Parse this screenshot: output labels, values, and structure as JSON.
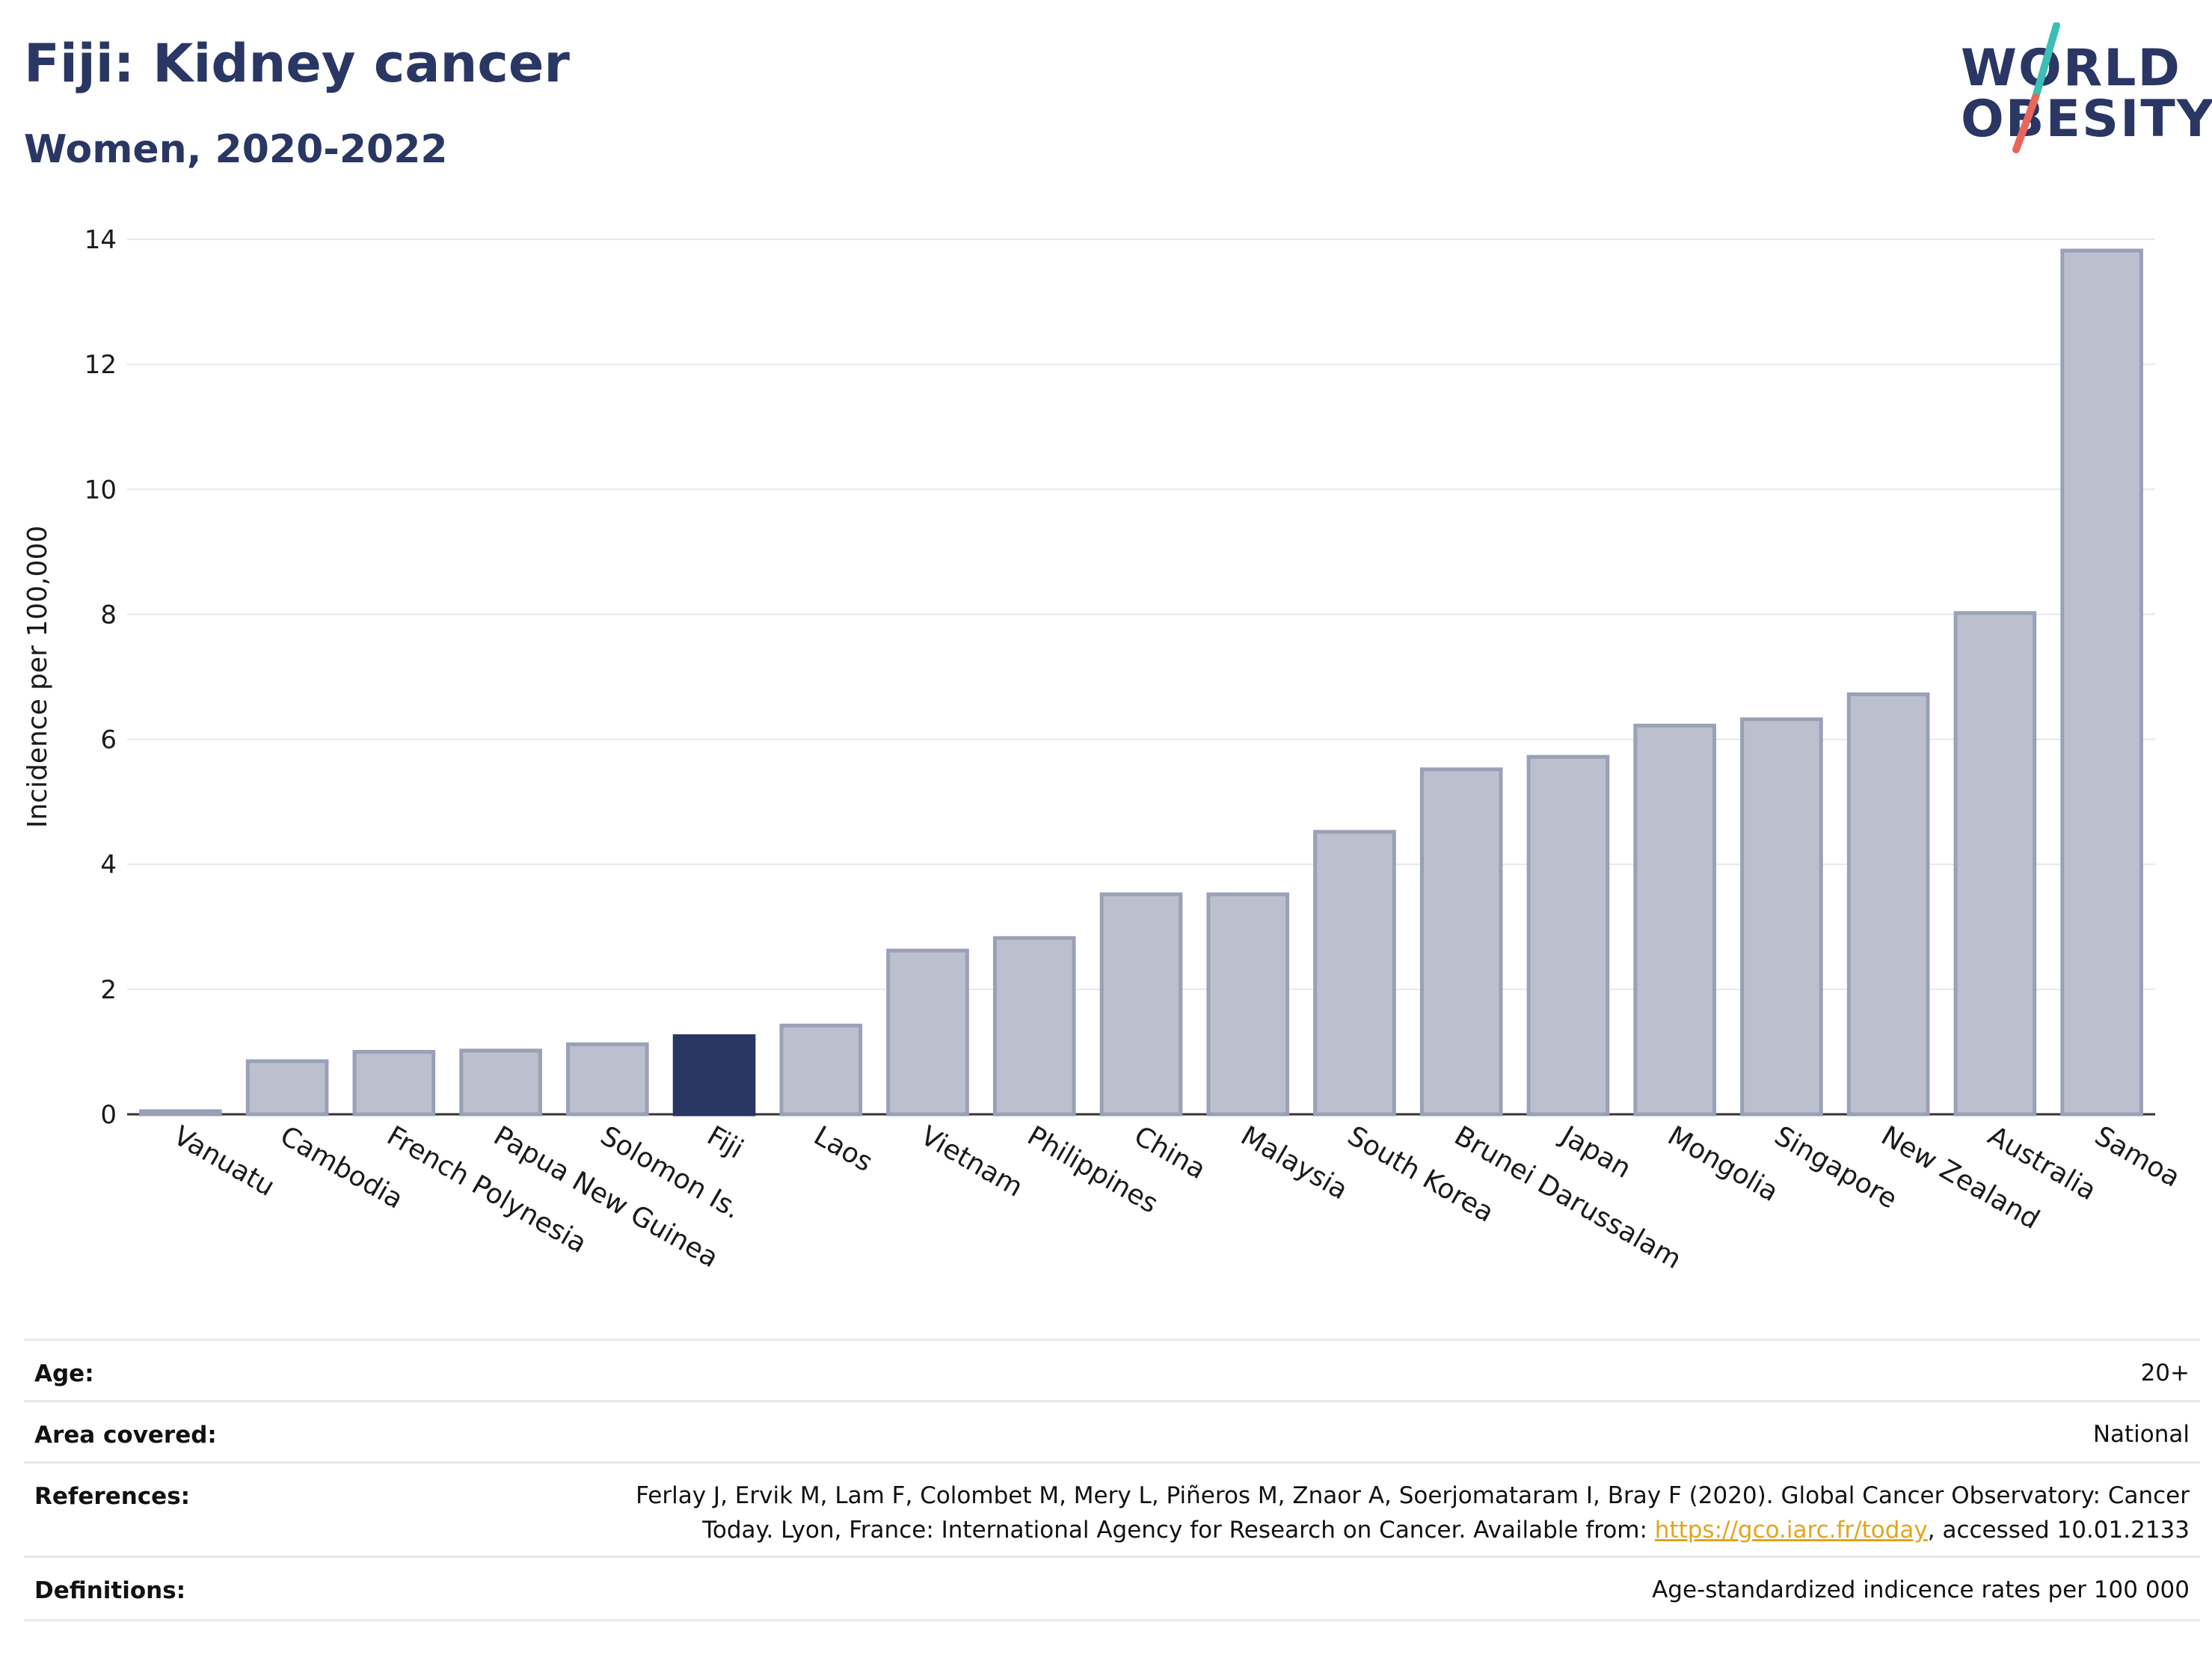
{
  "header": {
    "title": "Fiji: Kidney cancer",
    "subtitle": "Women, 2020-2022"
  },
  "logo": {
    "line1": "WORLD",
    "line2": "OBESITY",
    "colors": {
      "text": "#2a3663",
      "stroke_top": "#3bbfb5",
      "stroke_bottom": "#e8675a"
    }
  },
  "colors": {
    "highlight_bar": "#2a3663",
    "other_bar_fill": "#bcc0ce",
    "other_bar_stroke": "#9aa0b6",
    "grid": "#e6e8ee",
    "axis": "#333333"
  },
  "chart_data": {
    "type": "bar",
    "title": "",
    "xlabel": "",
    "ylabel": "Incidence per 100,000",
    "ylim": [
      0,
      14
    ],
    "yticks": [
      0,
      2,
      4,
      6,
      8,
      10,
      12,
      14
    ],
    "grid": true,
    "highlight": "Fiji",
    "categories": [
      "Vanuatu",
      "Cambodia",
      "French Polynesia",
      "Papua New Guinea",
      "Solomon Is.",
      "Fiji",
      "Laos",
      "Vietnam",
      "Philippines",
      "China",
      "Malaysia",
      "South Korea",
      "Brunei Darussalam",
      "Japan",
      "Mongolia",
      "Singapore",
      "New Zealand",
      "Australia",
      "Samoa"
    ],
    "values": [
      0.05,
      0.85,
      1.0,
      1.02,
      1.12,
      1.25,
      1.42,
      2.62,
      2.82,
      3.52,
      3.52,
      4.52,
      5.52,
      5.72,
      6.22,
      6.32,
      6.72,
      8.02,
      13.82
    ]
  },
  "meta": {
    "age": {
      "label": "Age:",
      "value": "20+"
    },
    "area": {
      "label": "Area covered:",
      "value": "National"
    },
    "references": {
      "label": "References:",
      "line1": "Ferlay J, Ervik M, Lam F, Colombet M, Mery L, Piñeros M, Znaor A, Soerjomataram I, Bray F (2020). Global Cancer Observatory: Cancer",
      "line2_before": "Today. Lyon, France: International Agency for Research on Cancer. Available from: ",
      "link": "https://gco.iarc.fr/today",
      "line2_after": ", accessed 10.01.2133"
    },
    "definitions": {
      "label": "Definitions:",
      "value": "Age-standardized indicence rates per 100 000"
    }
  }
}
